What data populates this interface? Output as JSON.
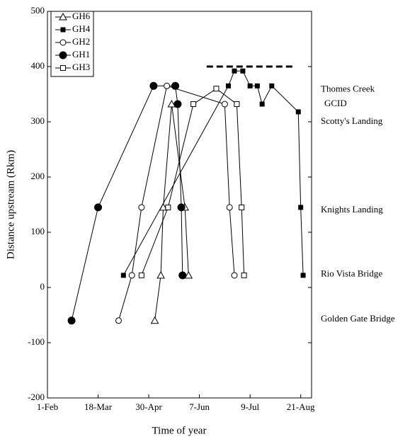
{
  "chart_data": {
    "type": "line",
    "x_label": "Time of year",
    "y_label": "Distance upstream (Rkm)",
    "xlim": [
      0,
      219
    ],
    "xticks": [
      {
        "value": 0,
        "label": "1-Feb"
      },
      {
        "value": 42,
        "label": "18-Mar"
      },
      {
        "value": 84,
        "label": "30-Apr"
      },
      {
        "value": 126,
        "label": "7-Jun"
      },
      {
        "value": 168,
        "label": "9-Jul"
      },
      {
        "value": 210,
        "label": "21-Aug"
      }
    ],
    "ylim": [
      -200,
      500
    ],
    "yticks": [
      -200,
      -100,
      0,
      100,
      200,
      300,
      400,
      500
    ],
    "legend": "upper left",
    "series": [
      {
        "name": "GH6",
        "color": "#000000",
        "marker": "triangle-open",
        "x": [
          89,
          94,
          96,
          103,
          114,
          117
        ],
        "values": [
          -60,
          22,
          145,
          332,
          145,
          22
        ]
      },
      {
        "name": "GH4",
        "color": "#000000",
        "marker": "square-filled",
        "x": [
          63,
          150,
          155,
          162,
          168,
          174,
          178,
          186,
          208,
          210,
          212
        ],
        "values": [
          22,
          365,
          392,
          392,
          365,
          365,
          332,
          365,
          318,
          145,
          22
        ]
      },
      {
        "name": "GH2",
        "color": "#000000",
        "marker": "circle-open",
        "x": [
          59,
          70,
          78,
          99,
          147,
          151,
          155
        ],
        "values": [
          -60,
          22,
          145,
          365,
          332,
          145,
          22
        ]
      },
      {
        "name": "GH1",
        "color": "#000000",
        "marker": "circle-filled",
        "x": [
          20,
          42,
          88,
          106,
          108,
          111,
          112
        ],
        "values": [
          -60,
          145,
          365,
          365,
          332,
          145,
          22
        ]
      },
      {
        "name": "GH3",
        "color": "#000000",
        "marker": "square-open",
        "x": [
          78,
          100,
          121,
          140,
          157,
          161,
          163
        ],
        "values": [
          22,
          145,
          332,
          360,
          332,
          145,
          22
        ]
      }
    ],
    "reference_line": {
      "y": 400,
      "x": [
        132,
        204
      ],
      "style": "dashed"
    },
    "annotations": [
      {
        "text": "Thomes Creek",
        "y": 358
      },
      {
        "text": "GCID",
        "y": 332
      },
      {
        "text": "Scotty's Landing",
        "y": 300
      },
      {
        "text": "Knights Landing",
        "y": 140
      },
      {
        "text": "Rio Vista Bridge",
        "y": 24
      },
      {
        "text": "Golden Gate Bridge",
        "y": -58
      }
    ]
  }
}
